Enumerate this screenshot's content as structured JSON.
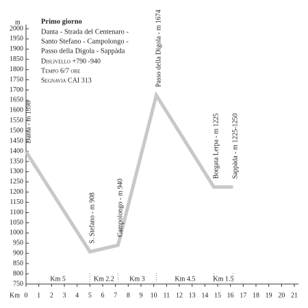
{
  "chart_data": {
    "type": "line",
    "y_label": "m",
    "x_label": "Km",
    "info": {
      "title": "Primo giorno",
      "route": [
        "Danta - Strada del Centenaro -",
        "Santo Stefano - Campolongo -",
        "Passo della Digola - Sappàda"
      ],
      "details": [
        "Dislivello  +790 -940",
        "Tempo  6/7 ore",
        "Segnavia  CAI 313"
      ]
    },
    "x": [
      0,
      5,
      7.2,
      10.2,
      14.7,
      16.2
    ],
    "values": [
      1398,
      908,
      940,
      1674,
      1225,
      1225
    ],
    "point_labels": [
      "Danta - m 1398",
      "S. Stefano - m 908",
      "Campolongo - m 940",
      "Passo della Digola - m 1674",
      "Borgata Lerpa - m 1225",
      "Sappàda - m 1225-1250"
    ],
    "segments": [
      {
        "label": "Km 5",
        "from": 0,
        "to": 5
      },
      {
        "label": "Km 2.2",
        "from": 5,
        "to": 7.2
      },
      {
        "label": "Km 3",
        "from": 7.2,
        "to": 10.2
      },
      {
        "label": "Km 4.5",
        "from": 10.2,
        "to": 14.7
      },
      {
        "label": "Km 1.5",
        "from": 14.7,
        "to": 16.2
      }
    ],
    "color": "#c8c8c8",
    "xlim": [
      0,
      21
    ],
    "xticks": [
      0,
      1,
      2,
      3,
      4,
      5,
      6,
      7,
      8,
      9,
      10,
      11,
      12,
      13,
      14,
      15,
      16,
      17,
      18,
      19,
      20,
      21
    ],
    "ylim": [
      750,
      2000
    ],
    "yticks": [
      750,
      800,
      850,
      900,
      950,
      1000,
      1050,
      1100,
      1150,
      1200,
      1250,
      1300,
      1350,
      1400,
      1450,
      1500,
      1550,
      1600,
      1650,
      1700,
      1750,
      1800,
      1850,
      1900,
      1950,
      2000
    ]
  }
}
